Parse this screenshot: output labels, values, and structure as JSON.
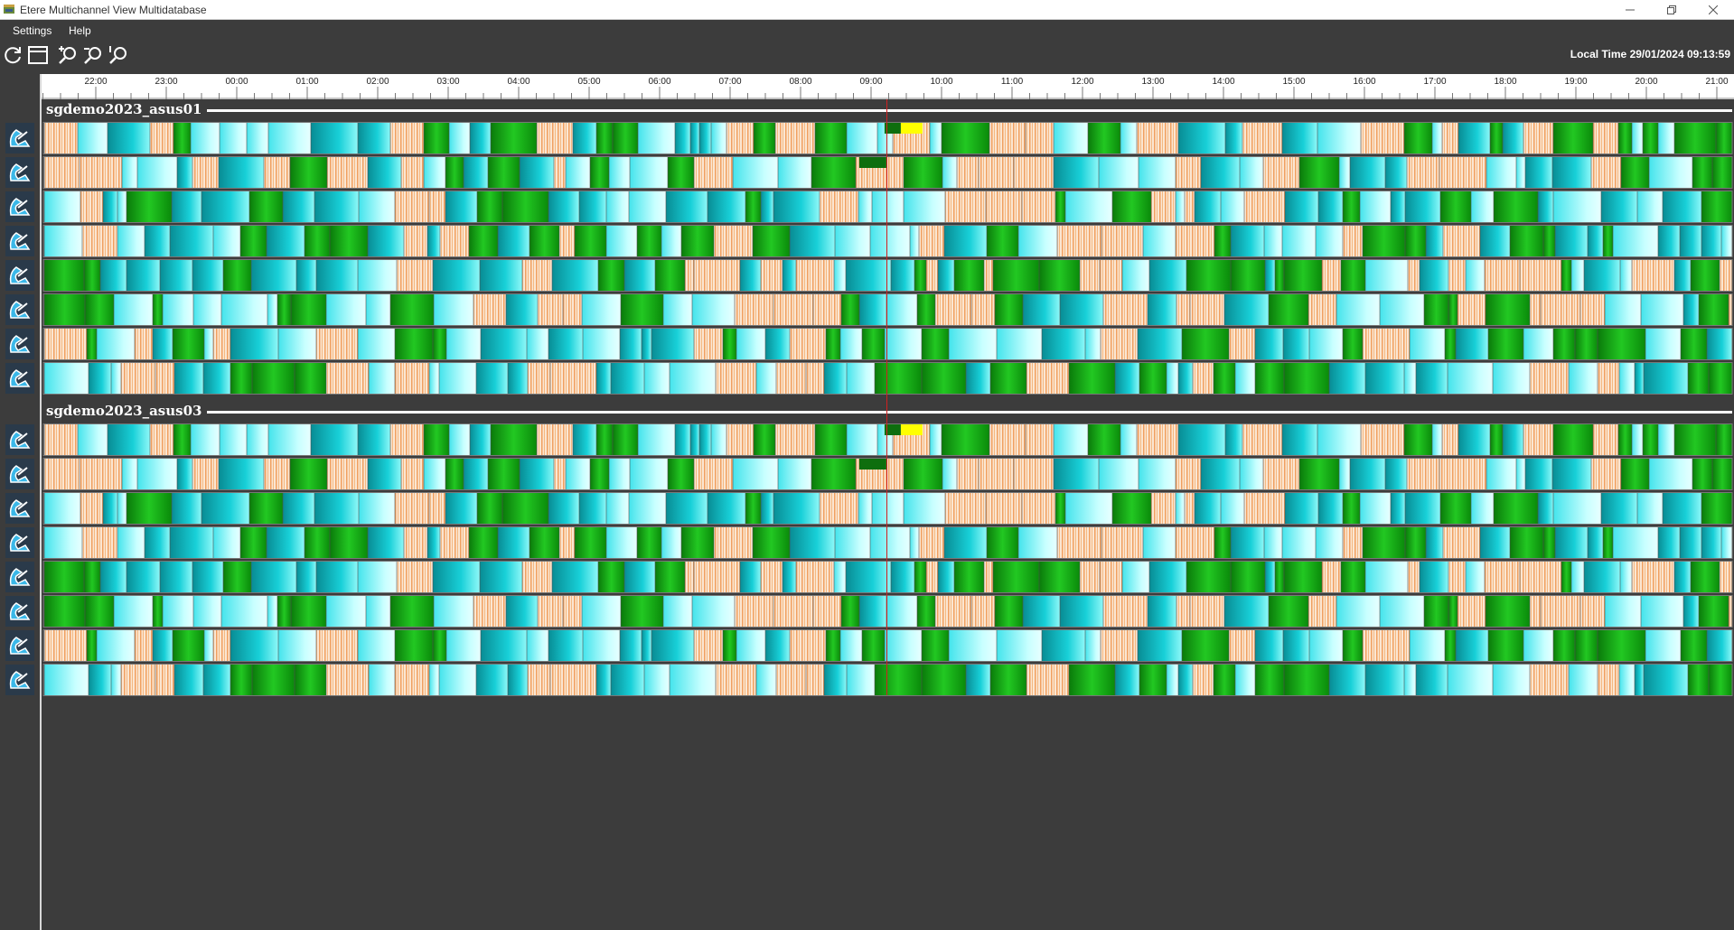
{
  "window": {
    "title": "Etere Multichannel View Multidatabase",
    "minimize_icon": "minimize-icon",
    "restore_icon": "restore-icon",
    "close_icon": "close-icon"
  },
  "menu": {
    "items": [
      {
        "label": "Settings"
      },
      {
        "label": "Help"
      }
    ]
  },
  "toolbar": {
    "buttons": [
      {
        "name": "refresh-button",
        "icon": "refresh-icon"
      },
      {
        "name": "layout-button",
        "icon": "window-layout-icon"
      },
      {
        "name": "zoom-in-button",
        "icon": "zoom-in-icon"
      },
      {
        "name": "zoom-out-button",
        "icon": "zoom-out-icon"
      },
      {
        "name": "zoom-reset-button",
        "icon": "zoom-reset-icon"
      }
    ],
    "local_time": "Local Time 29/01/2024 09:13:59"
  },
  "ruler": {
    "hours": [
      "22:00",
      "23:00",
      "00:00",
      "01:00",
      "02:00",
      "03:00",
      "04:00",
      "05:00",
      "06:00",
      "07:00",
      "08:00",
      "09:00",
      "10:00",
      "11:00",
      "12:00",
      "13:00",
      "14:00",
      "15:00",
      "16:00",
      "17:00",
      "18:00",
      "19:00",
      "20:00",
      "21:00"
    ]
  },
  "timeline": {
    "current_time_marker": "09:13",
    "colors": {
      "green": "#18b418",
      "dark_teal": "#0a9a9a",
      "cyan": "#7ef2f2",
      "orange_stripes": "#f0a060",
      "yellow": "#ffff00",
      "now_line": "#d02020"
    },
    "groups": [
      {
        "name": "sgdemo2023_asus01",
        "channels": 8,
        "channel_icon": "channel-logo-icon"
      },
      {
        "name": "sgdemo2023_asus03",
        "channels": 8,
        "channel_icon": "channel-logo-icon"
      }
    ]
  }
}
